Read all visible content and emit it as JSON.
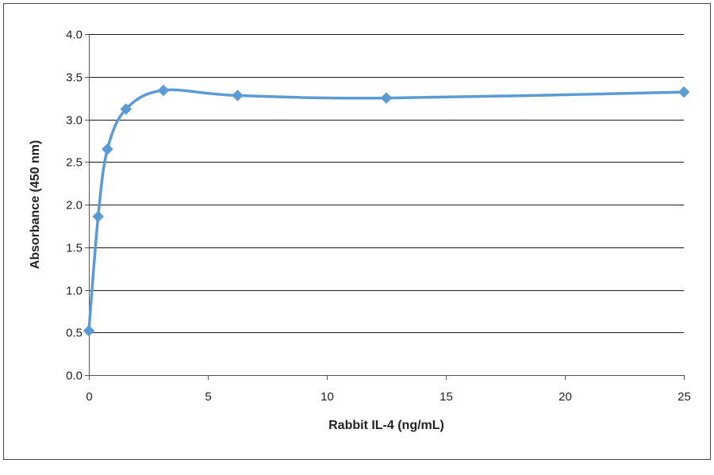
{
  "chart_data": {
    "type": "line",
    "title": "",
    "xlabel": "Rabbit IL-4 (ng/mL)",
    "ylabel": "Absorbance  (450 nm)",
    "xlim": [
      0,
      25
    ],
    "ylim": [
      0,
      4
    ],
    "x_ticks": [
      0,
      5,
      10,
      15,
      20,
      25
    ],
    "y_ticks": [
      0,
      0.5,
      1,
      1.5,
      2,
      2.5,
      3,
      3.5,
      4
    ],
    "x_tick_labels": [
      "0",
      "5",
      "10",
      "15",
      "20",
      "25"
    ],
    "y_tick_labels": [
      "0.0",
      "0.5",
      "1.0",
      "1.5",
      "2.0",
      "2.5",
      "3.0",
      "3.5",
      "4.0"
    ],
    "grid": "horizontal",
    "legend": "none",
    "line_color": "#5b9bd5",
    "series": [
      {
        "x": [
          0,
          0.39,
          0.78,
          1.56,
          3.13,
          6.25,
          12.5,
          25
        ],
        "y": [
          0.52,
          1.86,
          2.65,
          3.12,
          3.34,
          3.28,
          3.25,
          3.32
        ]
      }
    ]
  }
}
